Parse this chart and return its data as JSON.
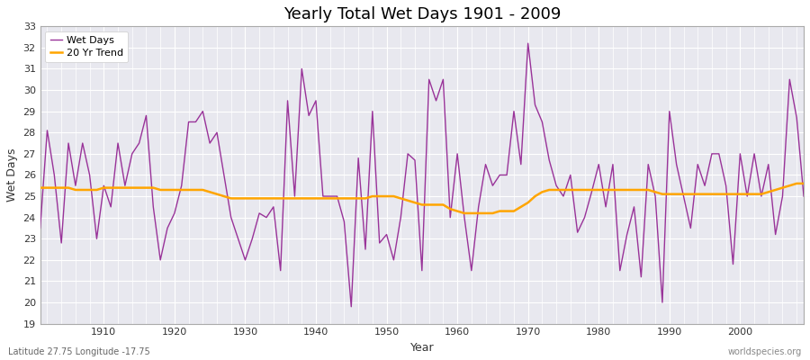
{
  "title": "Yearly Total Wet Days 1901 - 2009",
  "xlabel": "Year",
  "ylabel": "Wet Days",
  "subtitle": "Latitude 27.75 Longitude -17.75",
  "watermark": "worldspecies.org",
  "ylim": [
    19,
    33
  ],
  "xlim": [
    1901,
    2009
  ],
  "xticks": [
    1910,
    1920,
    1930,
    1940,
    1950,
    1960,
    1970,
    1980,
    1990,
    2000
  ],
  "wet_days_color": "#993399",
  "trend_color": "#FFA500",
  "background_color": "#E8E8EF",
  "grid_color": "#FFFFFF",
  "years": [
    1901,
    1902,
    1903,
    1904,
    1905,
    1906,
    1907,
    1908,
    1909,
    1910,
    1911,
    1912,
    1913,
    1914,
    1915,
    1916,
    1917,
    1918,
    1919,
    1920,
    1921,
    1922,
    1923,
    1924,
    1925,
    1926,
    1927,
    1928,
    1929,
    1930,
    1931,
    1932,
    1933,
    1934,
    1935,
    1936,
    1937,
    1938,
    1939,
    1940,
    1941,
    1942,
    1943,
    1944,
    1945,
    1946,
    1947,
    1948,
    1949,
    1950,
    1951,
    1952,
    1953,
    1954,
    1955,
    1956,
    1957,
    1958,
    1959,
    1960,
    1961,
    1962,
    1963,
    1964,
    1965,
    1966,
    1967,
    1968,
    1969,
    1970,
    1971,
    1972,
    1973,
    1974,
    1975,
    1976,
    1977,
    1978,
    1979,
    1980,
    1981,
    1982,
    1983,
    1984,
    1985,
    1986,
    1987,
    1988,
    1989,
    1990,
    1991,
    1992,
    1993,
    1994,
    1995,
    1996,
    1997,
    1998,
    1999,
    2000,
    2001,
    2002,
    2003,
    2004,
    2005,
    2006,
    2007,
    2008,
    2009
  ],
  "wet_days": [
    23.5,
    28.1,
    26.0,
    22.8,
    27.5,
    25.5,
    27.5,
    26.0,
    23.0,
    25.5,
    24.5,
    27.5,
    25.5,
    27.0,
    27.5,
    28.8,
    24.5,
    22.0,
    23.5,
    24.2,
    25.5,
    28.5,
    28.5,
    29.0,
    27.5,
    28.0,
    26.0,
    24.0,
    23.0,
    22.0,
    23.0,
    24.2,
    24.0,
    24.5,
    21.5,
    29.5,
    25.0,
    31.0,
    28.8,
    29.5,
    25.0,
    25.0,
    25.0,
    23.8,
    19.8,
    26.8,
    22.5,
    29.0,
    22.8,
    23.2,
    22.0,
    24.0,
    27.0,
    26.7,
    21.5,
    30.5,
    29.5,
    30.5,
    24.0,
    27.0,
    24.0,
    21.5,
    24.5,
    26.5,
    25.5,
    26.0,
    26.0,
    29.0,
    26.5,
    32.2,
    29.3,
    28.5,
    26.7,
    25.5,
    25.0,
    26.0,
    23.3,
    24.0,
    25.2,
    26.5,
    24.5,
    26.5,
    21.5,
    23.2,
    24.5,
    21.2,
    26.5,
    25.0,
    20.0,
    29.0,
    26.5,
    25.0,
    23.5,
    26.5,
    25.5,
    27.0,
    27.0,
    25.5,
    21.8,
    27.0,
    25.0,
    27.0,
    25.0,
    26.5,
    23.2,
    25.0,
    30.5,
    28.7,
    25.0
  ],
  "trend": [
    25.4,
    25.4,
    25.4,
    25.4,
    25.4,
    25.3,
    25.3,
    25.3,
    25.3,
    25.4,
    25.4,
    25.4,
    25.4,
    25.4,
    25.4,
    25.4,
    25.4,
    25.3,
    25.3,
    25.3,
    25.3,
    25.3,
    25.3,
    25.3,
    25.2,
    25.1,
    25.0,
    24.9,
    24.9,
    24.9,
    24.9,
    24.9,
    24.9,
    24.9,
    24.9,
    24.9,
    24.9,
    24.9,
    24.9,
    24.9,
    24.9,
    24.9,
    24.9,
    24.9,
    24.9,
    24.9,
    24.9,
    25.0,
    25.0,
    25.0,
    25.0,
    24.9,
    24.8,
    24.7,
    24.6,
    24.6,
    24.6,
    24.6,
    24.4,
    24.3,
    24.2,
    24.2,
    24.2,
    24.2,
    24.2,
    24.3,
    24.3,
    24.3,
    24.5,
    24.7,
    25.0,
    25.2,
    25.3,
    25.3,
    25.3,
    25.3,
    25.3,
    25.3,
    25.3,
    25.3,
    25.3,
    25.3,
    25.3,
    25.3,
    25.3,
    25.3,
    25.3,
    25.2,
    25.1,
    25.1,
    25.1,
    25.1,
    25.1,
    25.1,
    25.1,
    25.1,
    25.1,
    25.1,
    25.1,
    25.1,
    25.1,
    25.1,
    25.1,
    25.2,
    25.3,
    25.4,
    25.5,
    25.6,
    25.6
  ]
}
